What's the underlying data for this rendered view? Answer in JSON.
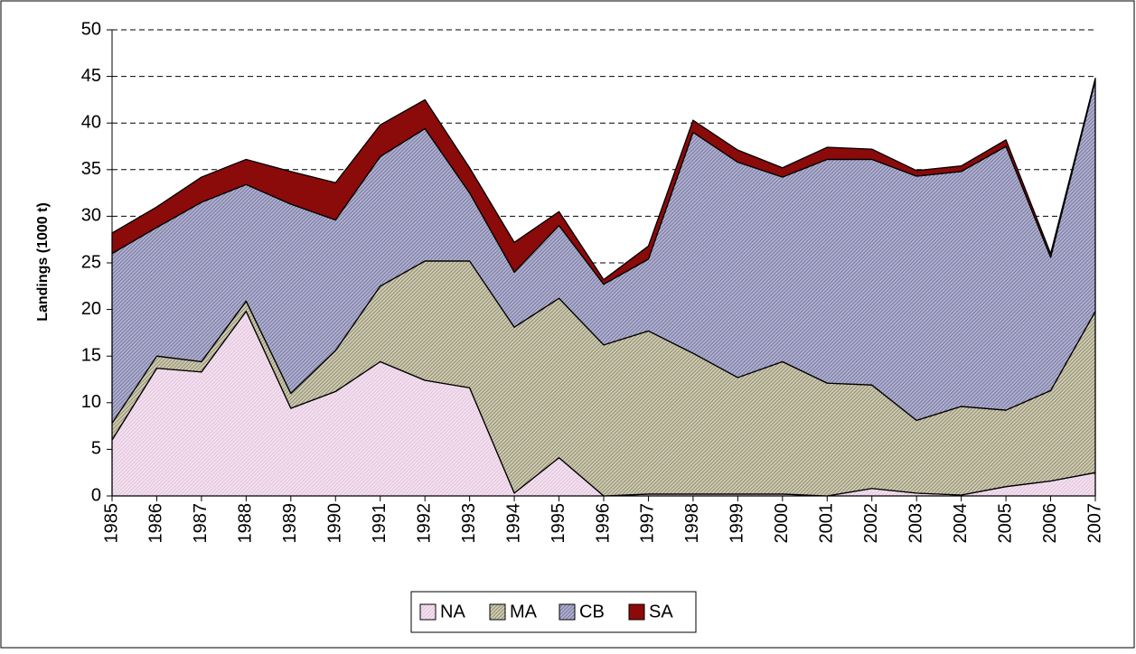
{
  "chart_data": {
    "type": "stacked-area",
    "y_label": "Landings (1000 t)",
    "x": [
      1985,
      1986,
      1987,
      1988,
      1989,
      1990,
      1991,
      1992,
      1993,
      1994,
      1995,
      1996,
      1997,
      1998,
      1999,
      2000,
      2001,
      2002,
      2003,
      2004,
      2005,
      2006,
      2007
    ],
    "xlim": [
      1985,
      2007
    ],
    "ylim": [
      0,
      50
    ],
    "yticks": [
      0,
      5,
      10,
      15,
      20,
      25,
      30,
      35,
      40,
      45,
      50
    ],
    "grid": true,
    "legend": "bottom",
    "series": [
      {
        "name": "NA",
        "color": "#f6dff2",
        "values": [
          6,
          13.7,
          13.3,
          19.8,
          9.4,
          11.2,
          14.4,
          12.4,
          11.6,
          0.3,
          4.1,
          0,
          0.2,
          0.2,
          0.2,
          0.2,
          0,
          0.8,
          0.3,
          0.1,
          1.0,
          1.6,
          2.5
        ]
      },
      {
        "name": "MA",
        "color": "#cfcbae",
        "values": [
          1.8,
          1.3,
          1.1,
          1.1,
          1.6,
          4.4,
          8.1,
          12.8,
          13.6,
          17.8,
          17.1,
          16.2,
          17.5,
          15.1,
          12.5,
          14.2,
          12.1,
          11.1,
          7.8,
          9.5,
          8.2,
          9.7,
          17.3
        ]
      },
      {
        "name": "CB",
        "color": "#afafd6",
        "values": [
          18.2,
          13.8,
          17.1,
          12.5,
          20.3,
          14.0,
          13.9,
          14.2,
          7.3,
          5.9,
          7.8,
          6.5,
          7.7,
          23.7,
          23.1,
          19.8,
          24.0,
          24.2,
          26.2,
          25.2,
          28.3,
          14.3,
          24.8
        ]
      },
      {
        "name": "SA",
        "color": "#8b0a0a",
        "values": [
          2.2,
          2.2,
          2.7,
          2.7,
          3.5,
          4.0,
          3.4,
          3.1,
          2.7,
          3.2,
          1.5,
          0.5,
          1.4,
          1.3,
          1.3,
          1.0,
          1.3,
          1.1,
          0.6,
          0.6,
          0.7,
          0.4,
          0.2
        ]
      }
    ]
  }
}
